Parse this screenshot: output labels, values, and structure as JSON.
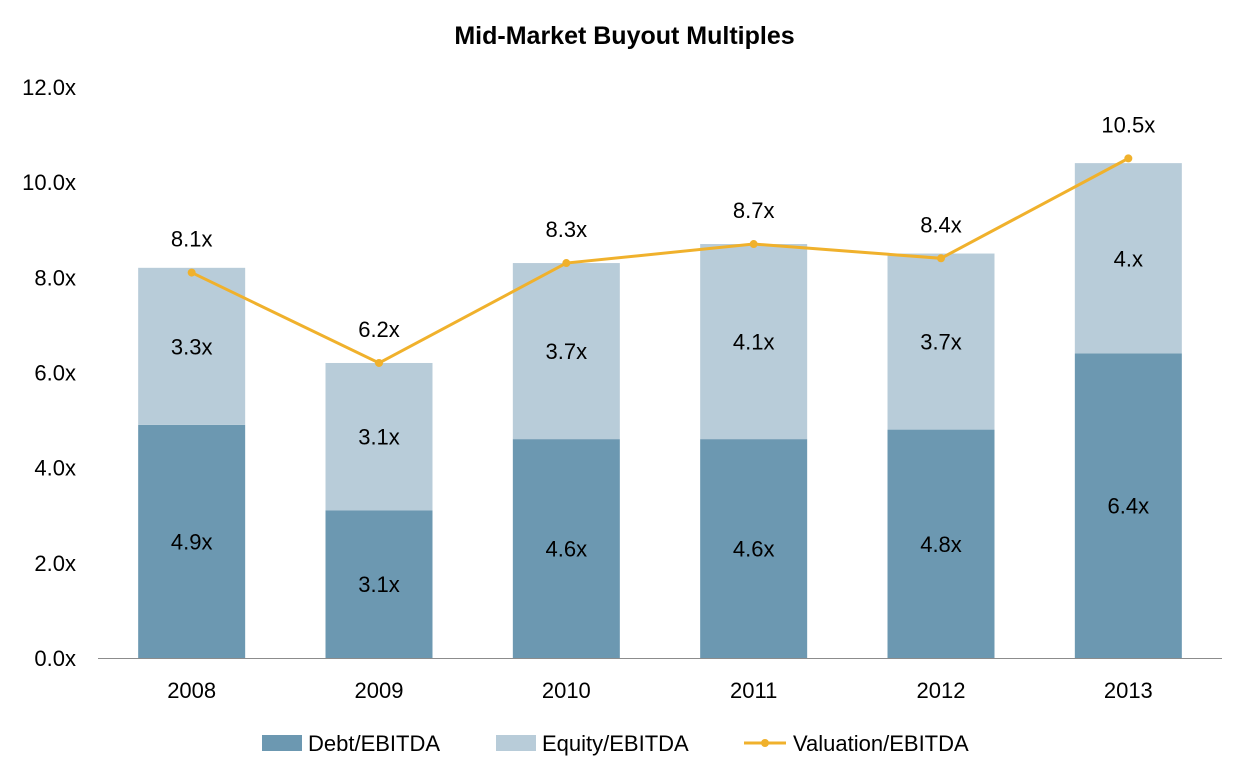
{
  "chart_data": {
    "type": "bar",
    "stacked": true,
    "title": "Mid-Market Buyout Multiples",
    "xlabel": "",
    "ylabel": "",
    "ylim": [
      0,
      12
    ],
    "yticks": [
      0,
      2,
      4,
      6,
      8,
      10,
      12
    ],
    "ytick_labels": [
      "0.0x",
      "2.0x",
      "4.0x",
      "6.0x",
      "8.0x",
      "10.0x",
      "12.0x"
    ],
    "categories": [
      "2008",
      "2009",
      "2010",
      "2011",
      "2012",
      "2013"
    ],
    "series": [
      {
        "name": "Debt/EBITDA",
        "kind": "bar",
        "color": "#6c98b1",
        "values": [
          4.9,
          3.1,
          4.6,
          4.6,
          4.8,
          6.4
        ],
        "labels": [
          "4.9x",
          "3.1x",
          "4.6x",
          "4.6x",
          "4.8x",
          "6.4x"
        ]
      },
      {
        "name": "Equity/EBITDA",
        "kind": "bar",
        "color": "#b8ccd9",
        "values": [
          3.3,
          3.1,
          3.7,
          4.1,
          3.7,
          4.0
        ],
        "labels": [
          "3.3x",
          "3.1x",
          "3.7x",
          "4.1x",
          "3.7x",
          "4.x"
        ]
      },
      {
        "name": "Valuation/EBITDA",
        "kind": "line",
        "color": "#f0b12c",
        "values": [
          8.1,
          6.2,
          8.3,
          8.7,
          8.4,
          10.5
        ],
        "labels": [
          "8.1x",
          "6.2x",
          "8.3x",
          "8.7x",
          "8.4x",
          "10.5x"
        ]
      }
    ],
    "legend_position": "bottom",
    "grid": false
  }
}
